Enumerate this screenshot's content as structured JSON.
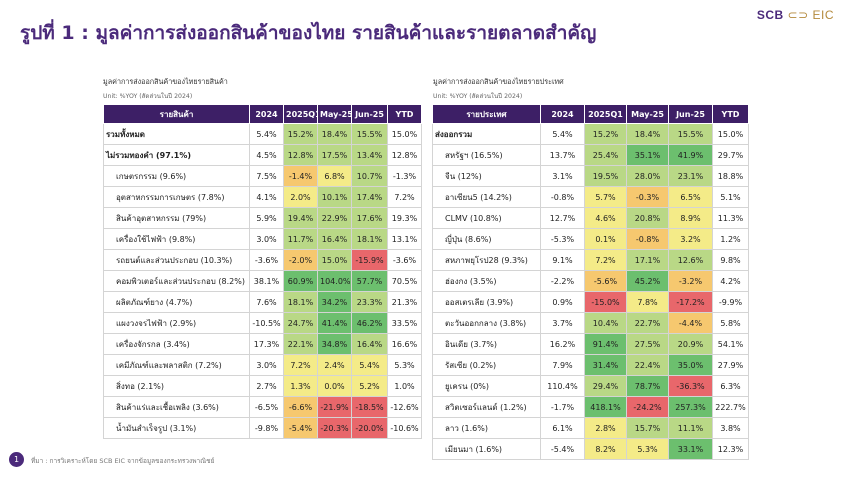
{
  "brand": {
    "scb": "SCB",
    "eic": "EIC"
  },
  "title": "รูปที่ 1 : มูลค่าการส่งออกสินค้าของไทย รายสินค้าและรายตลาดสำคัญ",
  "left": {
    "caption": "มูลค่าการส่งออกสินค้าของไทยรายสินค้า",
    "unit": "Unit: %YOY (สัดส่วนในปี 2024)",
    "headers": [
      "รายสินค้า",
      "2024",
      "2025Q1",
      "May-25",
      "Jun-25",
      "YTD"
    ],
    "rows": [
      {
        "label": "รวมทั้งหมด",
        "bold": true,
        "indent": false,
        "values": [
          "5.4%",
          "15.2%",
          "18.4%",
          "15.5%",
          "15.0%"
        ]
      },
      {
        "label": "ไม่รวมทองคำ (97.1%)",
        "bold": true,
        "indent": false,
        "values": [
          "4.5%",
          "12.8%",
          "17.5%",
          "13.4%",
          "12.8%"
        ]
      },
      {
        "label": "เกษตรกรรม (9.6%)",
        "bold": false,
        "indent": true,
        "values": [
          "7.5%",
          "-1.4%",
          "6.8%",
          "10.7%",
          "-1.3%"
        ]
      },
      {
        "label": "อุตสาหกรรมการเกษตร (7.8%)",
        "bold": false,
        "indent": true,
        "values": [
          "4.1%",
          "2.0%",
          "10.1%",
          "17.4%",
          "7.2%"
        ]
      },
      {
        "label": "สินค้าอุตสาหกรรม (79%)",
        "bold": false,
        "indent": true,
        "values": [
          "5.9%",
          "19.4%",
          "22.9%",
          "17.6%",
          "19.3%"
        ]
      },
      {
        "label": "เครื่องใช้ไฟฟ้า (9.8%)",
        "bold": false,
        "indent": true,
        "values": [
          "3.0%",
          "11.7%",
          "16.4%",
          "18.1%",
          "13.1%"
        ]
      },
      {
        "label": "รถยนต์และส่วนประกอบ (10.3%)",
        "bold": false,
        "indent": true,
        "values": [
          "-3.6%",
          "-2.0%",
          "15.0%",
          "-15.9%",
          "-3.6%"
        ]
      },
      {
        "label": "คอมพิวเตอร์และส่วนประกอบ (8.2%)",
        "bold": false,
        "indent": true,
        "values": [
          "38.1%",
          "60.9%",
          "104.0%",
          "57.7%",
          "70.5%"
        ]
      },
      {
        "label": "ผลิตภัณฑ์ยาง (4.7%)",
        "bold": false,
        "indent": true,
        "values": [
          "7.6%",
          "18.1%",
          "34.2%",
          "23.3%",
          "21.3%"
        ]
      },
      {
        "label": "แผงวงจรไฟฟ้า (2.9%)",
        "bold": false,
        "indent": true,
        "values": [
          "-10.5%",
          "24.7%",
          "41.4%",
          "46.2%",
          "33.5%"
        ]
      },
      {
        "label": "เครื่องจักรกล (3.4%)",
        "bold": false,
        "indent": true,
        "values": [
          "17.3%",
          "22.1%",
          "34.8%",
          "16.4%",
          "16.6%"
        ]
      },
      {
        "label": "เคมีภัณฑ์และพลาสติก (7.2%)",
        "bold": false,
        "indent": true,
        "values": [
          "3.0%",
          "7.2%",
          "2.4%",
          "5.4%",
          "5.3%"
        ]
      },
      {
        "label": "สิ่งทอ (2.1%)",
        "bold": false,
        "indent": true,
        "values": [
          "2.7%",
          "1.3%",
          "0.0%",
          "5.2%",
          "1.0%"
        ]
      },
      {
        "label": "สินค้าแร่และเชื้อเพลิง (3.6%)",
        "bold": false,
        "indent": true,
        "values": [
          "-6.5%",
          "-6.6%",
          "-21.9%",
          "-18.5%",
          "-12.6%"
        ]
      },
      {
        "label": "น้ำมันสำเร็จรูป (3.1%)",
        "bold": false,
        "indent": true,
        "values": [
          "-9.8%",
          "-5.4%",
          "-20.3%",
          "-20.0%",
          "-10.6%"
        ]
      }
    ]
  },
  "right": {
    "caption": "มูลค่าการส่งออกสินค้าของไทยรายประเทศ",
    "unit": "Unit: %YOY (สัดส่วนในปี 2024)",
    "headers": [
      "รายประเทศ",
      "2024",
      "2025Q1",
      "May-25",
      "Jun-25",
      "YTD"
    ],
    "rows": [
      {
        "label": "ส่งออกรวม",
        "bold": true,
        "indent": false,
        "values": [
          "5.4%",
          "15.2%",
          "18.4%",
          "15.5%",
          "15.0%"
        ]
      },
      {
        "label": "สหรัฐฯ (16.5%)",
        "bold": false,
        "indent": true,
        "values": [
          "13.7%",
          "25.4%",
          "35.1%",
          "41.9%",
          "29.7%"
        ]
      },
      {
        "label": "จีน (12%)",
        "bold": false,
        "indent": true,
        "values": [
          "3.1%",
          "19.5%",
          "28.0%",
          "23.1%",
          "18.8%"
        ]
      },
      {
        "label": "อาเซียน5 (14.2%)",
        "bold": false,
        "indent": true,
        "values": [
          "-0.8%",
          "5.7%",
          "-0.3%",
          "6.5%",
          "5.1%"
        ]
      },
      {
        "label": "CLMV (10.8%)",
        "bold": false,
        "indent": true,
        "values": [
          "12.7%",
          "4.6%",
          "20.8%",
          "8.9%",
          "11.3%"
        ]
      },
      {
        "label": "ญี่ปุ่น (8.6%)",
        "bold": false,
        "indent": true,
        "values": [
          "-5.3%",
          "0.1%",
          "-0.8%",
          "3.2%",
          "1.2%"
        ]
      },
      {
        "label": "สหภาพยุโรป28 (9.3%)",
        "bold": false,
        "indent": true,
        "values": [
          "9.1%",
          "7.2%",
          "17.1%",
          "12.6%",
          "9.8%"
        ]
      },
      {
        "label": "ฮ่องกง (3.5%)",
        "bold": false,
        "indent": true,
        "values": [
          "-2.2%",
          "-5.6%",
          "45.2%",
          "-3.2%",
          "4.2%"
        ]
      },
      {
        "label": "ออสเตรเลีย (3.9%)",
        "bold": false,
        "indent": true,
        "values": [
          "0.9%",
          "-15.0%",
          "7.8%",
          "-17.2%",
          "-9.9%"
        ]
      },
      {
        "label": "ตะวันออกกลาง (3.8%)",
        "bold": false,
        "indent": true,
        "values": [
          "3.7%",
          "10.4%",
          "22.7%",
          "-4.4%",
          "5.8%"
        ]
      },
      {
        "label": "อินเดีย (3.7%)",
        "bold": false,
        "indent": true,
        "values": [
          "16.2%",
          "91.4%",
          "27.5%",
          "20.9%",
          "54.1%"
        ]
      },
      {
        "label": "รัสเซีย (0.2%)",
        "bold": false,
        "indent": true,
        "values": [
          "7.9%",
          "31.4%",
          "22.4%",
          "35.0%",
          "27.9%"
        ]
      },
      {
        "label": "ยูเครน (0%)",
        "bold": false,
        "indent": true,
        "values": [
          "110.4%",
          "29.4%",
          "78.7%",
          "-36.3%",
          "6.3%"
        ]
      },
      {
        "label": "สวิตเซอร์แลนด์ (1.2%)",
        "bold": false,
        "indent": true,
        "values": [
          "-1.7%",
          "418.1%",
          "-24.2%",
          "257.3%",
          "222.7%"
        ]
      },
      {
        "label": "ลาว (1.6%)",
        "bold": false,
        "indent": true,
        "values": [
          "6.1%",
          "2.8%",
          "15.7%",
          "11.1%",
          "3.8%"
        ]
      },
      {
        "label": "เมียนมา (1.6%)",
        "bold": false,
        "indent": true,
        "values": [
          "-5.4%",
          "8.2%",
          "5.3%",
          "33.1%",
          "12.3%"
        ]
      }
    ]
  },
  "heat_colors": {
    "strong_neg": "#e8676b",
    "neg": "#f6c86f",
    "low": "#f4eb88",
    "mid": "#b9d886",
    "high": "#6cbf6e"
  },
  "footer": {
    "page_number": "1",
    "source": "ที่มา : การวิเคราะห์โดย SCB EIC จากข้อมูลของกระทรวงพาณิชย์"
  }
}
